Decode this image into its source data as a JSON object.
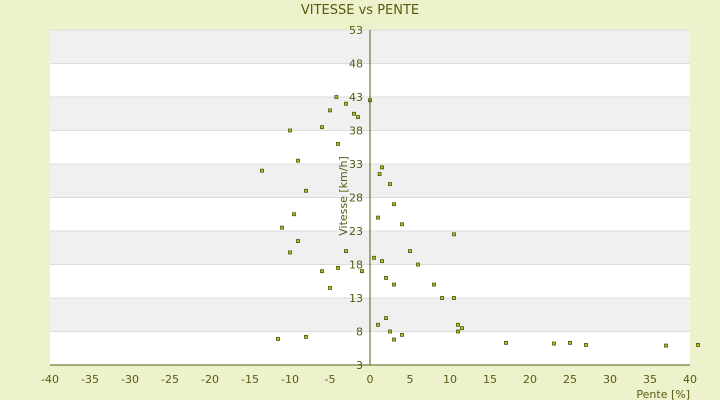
{
  "chart_data": {
    "type": "scatter",
    "title": "VITESSE vs PENTE",
    "xlabel": "Pente [%]",
    "ylabel": "Vitesse [km/h]",
    "xlim": [
      -40,
      40
    ],
    "ylim": [
      3,
      53
    ],
    "x_ticks": [
      -40,
      -35,
      -30,
      -25,
      -20,
      -15,
      -10,
      -5,
      0,
      5,
      10,
      15,
      20,
      25,
      30,
      35,
      40
    ],
    "y_ticks": [
      3,
      8,
      13,
      18,
      23,
      28,
      33,
      38,
      43,
      48,
      53
    ],
    "grid": true,
    "colors": {
      "background": "#eef2cc",
      "plot_band_light": "#ffffff",
      "plot_band_dark": "#f0f0f0",
      "marker_fill": "#b8c21a",
      "marker_edge": "#4a5206",
      "axis": "#555c10",
      "text": "#555c10"
    },
    "series": [
      {
        "points": [
          [
            -11.5,
            6.9
          ],
          [
            -8,
            7.2
          ],
          [
            11,
            8
          ],
          [
            17,
            6.3
          ],
          [
            23,
            6.2
          ],
          [
            25,
            6.3
          ],
          [
            27,
            6
          ],
          [
            37,
            5.9
          ],
          [
            41,
            6
          ],
          [
            -13.5,
            32
          ],
          [
            -10,
            38
          ],
          [
            -5,
            41
          ],
          [
            -4.2,
            43
          ],
          [
            -3,
            42
          ],
          [
            -2,
            40.5
          ],
          [
            -1.5,
            40
          ],
          [
            0,
            42.5
          ],
          [
            -6,
            38.5
          ],
          [
            -4,
            36
          ],
          [
            -9,
            33.5
          ],
          [
            -8,
            29
          ],
          [
            -9.5,
            25.5
          ],
          [
            -11,
            23.5
          ],
          [
            -9,
            21.5
          ],
          [
            -10,
            19.8
          ],
          [
            -6,
            17
          ],
          [
            -5,
            14.5
          ],
          [
            -4,
            17.5
          ],
          [
            -3,
            20
          ],
          [
            1,
            25
          ],
          [
            1.2,
            31.5
          ],
          [
            1.5,
            32.5
          ],
          [
            2.5,
            30
          ],
          [
            3,
            27
          ],
          [
            4,
            24
          ],
          [
            5,
            20
          ],
          [
            6,
            18
          ],
          [
            8,
            15
          ],
          [
            9,
            13
          ],
          [
            10.5,
            13
          ],
          [
            11,
            9
          ],
          [
            11.5,
            8.5
          ],
          [
            10.5,
            22.5
          ],
          [
            -1,
            17
          ],
          [
            0.5,
            19
          ],
          [
            1.5,
            18.5
          ],
          [
            2,
            16
          ],
          [
            3,
            15
          ],
          [
            2,
            10
          ],
          [
            1,
            9
          ],
          [
            2.5,
            8
          ],
          [
            3,
            6.8
          ],
          [
            4,
            7.5
          ]
        ]
      }
    ]
  }
}
